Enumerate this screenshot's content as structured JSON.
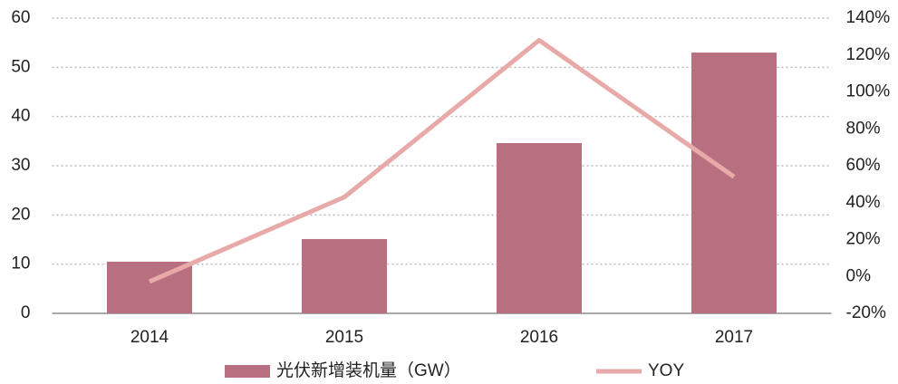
{
  "chart_data": {
    "type": "bar_line",
    "categories": [
      "2014",
      "2015",
      "2016",
      "2017"
    ],
    "series": [
      {
        "name": "光伏新增装机量（GW）",
        "color": "#b87080",
        "type": "bar",
        "values": [
          10.5,
          15.1,
          34.6,
          53.0
        ]
      },
      {
        "name": "YOY",
        "color": "#e8a9a9",
        "type": "line",
        "axis": "y2",
        "values": [
          -2.8,
          43,
          128,
          54
        ]
      }
    ],
    "ylim": [
      0,
      60
    ],
    "yticks": [
      0,
      10,
      20,
      30,
      40,
      50,
      60
    ],
    "y2lim": [
      -20,
      140
    ],
    "y2ticks": [
      {
        "value": -20,
        "label": "-20%"
      },
      {
        "value": 0,
        "label": "0%"
      },
      {
        "value": 20,
        "label": "20%"
      },
      {
        "value": 40,
        "label": "40%"
      },
      {
        "value": 60,
        "label": "60%"
      },
      {
        "value": 80,
        "label": "80%"
      },
      {
        "value": 100,
        "label": "100%"
      },
      {
        "value": 120,
        "label": "120%"
      },
      {
        "value": 140,
        "label": "140%"
      }
    ],
    "grid": true,
    "legend": "bottom"
  }
}
